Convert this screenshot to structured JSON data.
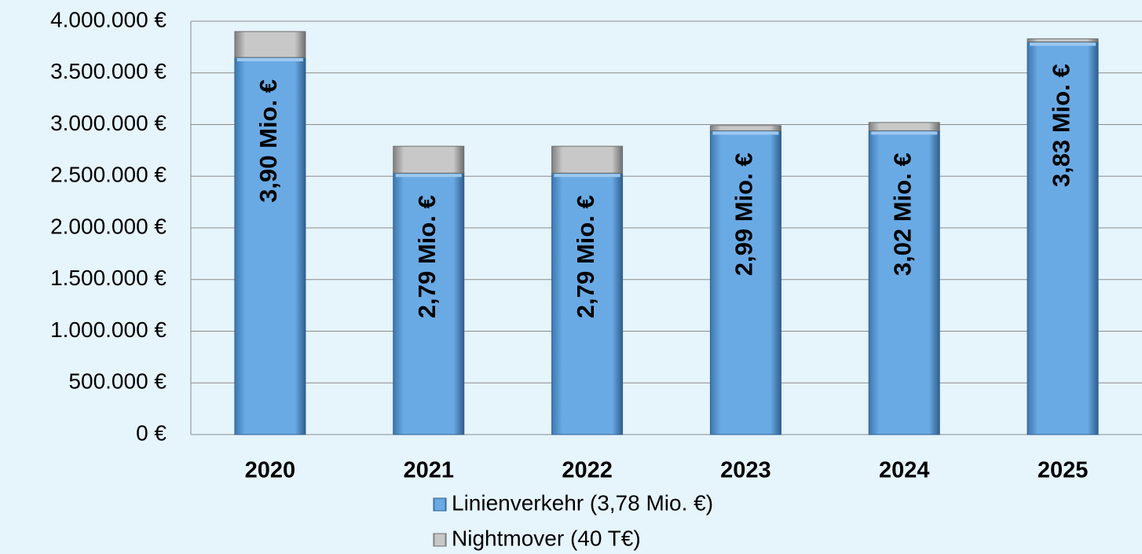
{
  "chart_data": {
    "type": "stacked_bar",
    "categories": [
      "2020",
      "2021",
      "2022",
      "2023",
      "2024",
      "2025"
    ],
    "series": [
      {
        "name": "Linienverkehr (3,78 Mio. €)",
        "color": "#5b9bd5",
        "values": [
          3650000,
          2530000,
          2530000,
          2940000,
          2940000,
          3800000
        ]
      },
      {
        "name": "Nightmover (40 T€)",
        "color": "#a6a6a6",
        "values": [
          250000,
          260000,
          260000,
          50000,
          80000,
          30000
        ]
      }
    ],
    "totals": [
      3900000,
      2790000,
      2790000,
      2990000,
      3020000,
      3830000
    ],
    "total_labels": [
      "3,90 Mio. €",
      "2,79 Mio. €",
      "2,79 Mio. €",
      "2,99 Mio. €",
      "3,02 Mio. €",
      "3,83 Mio. €"
    ],
    "ylim": [
      0,
      4000000
    ],
    "yticks": [
      {
        "value": 0,
        "label": "0 €"
      },
      {
        "value": 500000,
        "label": "500.000 €"
      },
      {
        "value": 1000000,
        "label": "1.000.000 €"
      },
      {
        "value": 1500000,
        "label": "1.500.000 €"
      },
      {
        "value": 2000000,
        "label": "2.000.000 €"
      },
      {
        "value": 2500000,
        "label": "2.500.000 €"
      },
      {
        "value": 3000000,
        "label": "3.000.000 €"
      },
      {
        "value": 3500000,
        "label": "3.500.000 €"
      },
      {
        "value": 4000000,
        "label": "4.000.000 €"
      }
    ],
    "grid": true,
    "legend": "bottom"
  }
}
